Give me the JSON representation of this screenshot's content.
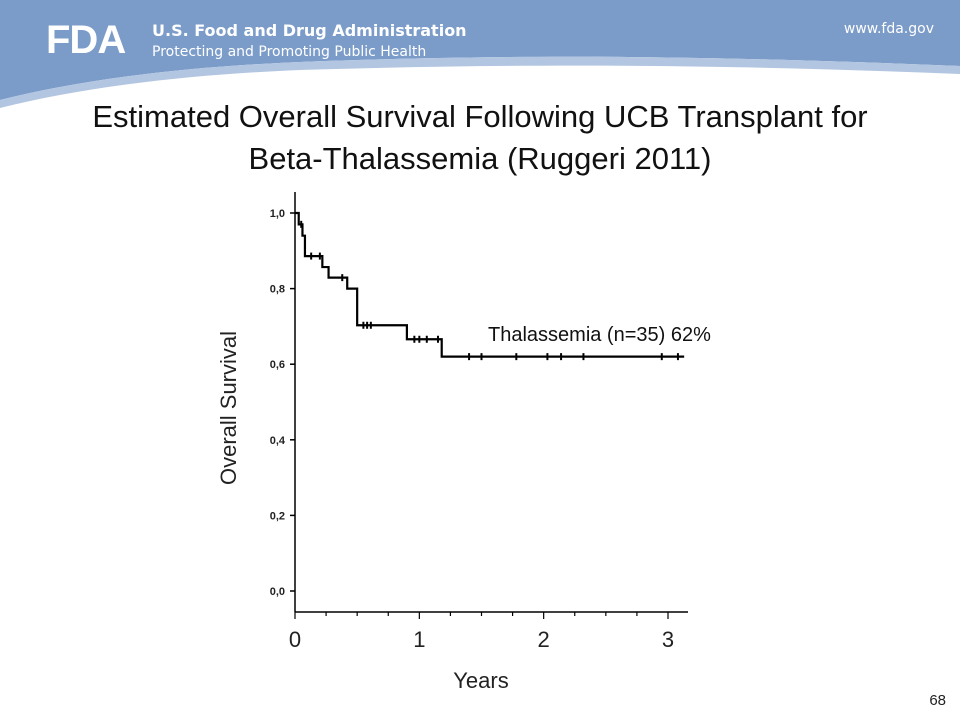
{
  "header": {
    "logo_text": "FDA",
    "org_name": "U.S. Food and Drug Administration",
    "tagline": "Protecting and Promoting Public Health",
    "url": "www.fda.gov",
    "colors": {
      "banner": "#7b9cc9",
      "banner_light": "#a9bfdd"
    }
  },
  "slide": {
    "title_line1": "Estimated Overall Survival Following UCB Transplant for",
    "title_line2": "Beta-Thalassemia (Ruggeri 2011)",
    "page_number": "68"
  },
  "chart_data": {
    "type": "line",
    "xlabel": "Years",
    "ylabel": "Overall Survival",
    "xlim": [
      0,
      3.15
    ],
    "ylim": [
      0,
      1.0
    ],
    "x_ticks": [
      0,
      1,
      2,
      3
    ],
    "x_tick_labels": [
      "0",
      "1",
      "2",
      "3"
    ],
    "y_ticks": [
      0,
      0.2,
      0.4,
      0.6,
      0.8,
      1.0
    ],
    "y_tick_labels": [
      "0,0",
      "0,2",
      "0,4",
      "0,6",
      "0,8",
      "1,0"
    ],
    "grid": false,
    "series": [
      {
        "name": "Thalassemia (n=35) 62%",
        "step": true,
        "points": [
          {
            "x": 0,
            "y": 1.0
          },
          {
            "x": 0.03,
            "y": 0.97
          },
          {
            "x": 0.06,
            "y": 0.94
          },
          {
            "x": 0.08,
            "y": 0.886
          },
          {
            "x": 0.22,
            "y": 0.857
          },
          {
            "x": 0.27,
            "y": 0.829
          },
          {
            "x": 0.42,
            "y": 0.8
          },
          {
            "x": 0.5,
            "y": 0.703
          },
          {
            "x": 0.9,
            "y": 0.666
          },
          {
            "x": 1.18,
            "y": 0.62
          },
          {
            "x": 3.13,
            "y": 0.62
          }
        ],
        "censored_x": [
          0.05,
          0.13,
          0.2,
          0.38,
          0.55,
          0.58,
          0.61,
          0.96,
          1.0,
          1.06,
          1.15,
          1.4,
          1.5,
          1.78,
          2.03,
          2.14,
          2.32,
          2.95,
          3.08
        ],
        "color": "#000000"
      }
    ]
  }
}
